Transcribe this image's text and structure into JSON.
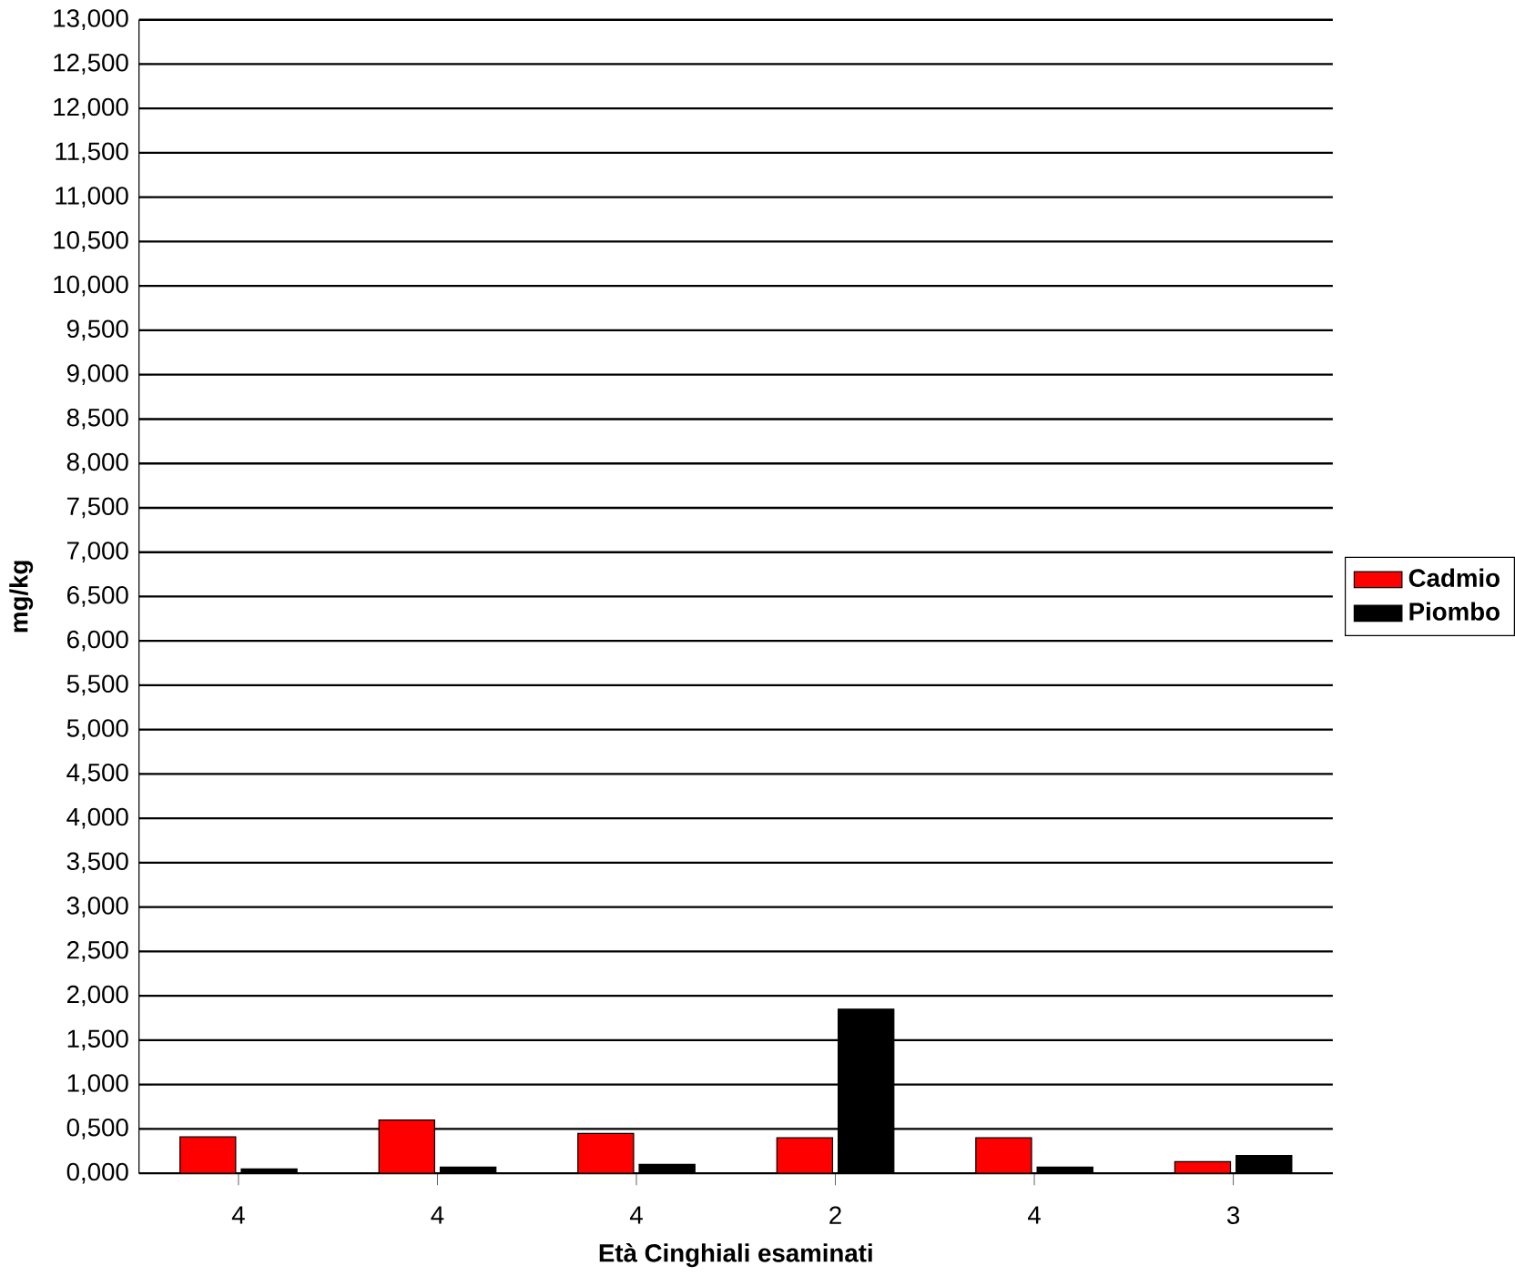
{
  "chart_data": {
    "type": "bar",
    "xlabel": "Età Cinghiali esaminati",
    "ylabel": "mg/kg",
    "categories": [
      "4",
      "4",
      "4",
      "2",
      "4",
      "3"
    ],
    "series": [
      {
        "name": "Cadmio",
        "color": "#ff0000",
        "values": [
          0.41,
          0.6,
          0.45,
          0.4,
          0.4,
          0.13
        ]
      },
      {
        "name": "Piombo",
        "color": "#000000",
        "values": [
          0.05,
          0.07,
          0.1,
          1.85,
          0.07,
          0.2
        ]
      }
    ],
    "ylim": [
      0,
      13
    ],
    "yticks": [
      {
        "value": 0,
        "label": "0,000"
      },
      {
        "value": 0.5,
        "label": "0,500"
      },
      {
        "value": 1,
        "label": "1,000"
      },
      {
        "value": 1.5,
        "label": "1,500"
      },
      {
        "value": 2,
        "label": "2,000"
      },
      {
        "value": 2.5,
        "label": "2,500"
      },
      {
        "value": 3,
        "label": "3,000"
      },
      {
        "value": 3.5,
        "label": "3,500"
      },
      {
        "value": 4,
        "label": "4,000"
      },
      {
        "value": 4.5,
        "label": "4,500"
      },
      {
        "value": 5,
        "label": "5,000"
      },
      {
        "value": 5.5,
        "label": "5,500"
      },
      {
        "value": 6,
        "label": "6,000"
      },
      {
        "value": 6.5,
        "label": "6,500"
      },
      {
        "value": 7,
        "label": "7,000"
      },
      {
        "value": 7.5,
        "label": "7,500"
      },
      {
        "value": 8,
        "label": "8,000"
      },
      {
        "value": 8.5,
        "label": "8,500"
      },
      {
        "value": 9,
        "label": "9,000"
      },
      {
        "value": 9.5,
        "label": "9,500"
      },
      {
        "value": 10,
        "label": "10,000"
      },
      {
        "value": 10.5,
        "label": "10,500"
      },
      {
        "value": 11,
        "label": "11,000"
      },
      {
        "value": 11.5,
        "label": "11,500"
      },
      {
        "value": 12,
        "label": "12,000"
      },
      {
        "value": 12.5,
        "label": "12,500"
      },
      {
        "value": 13,
        "label": "13,000"
      }
    ],
    "grid": "y",
    "legend": "right"
  }
}
